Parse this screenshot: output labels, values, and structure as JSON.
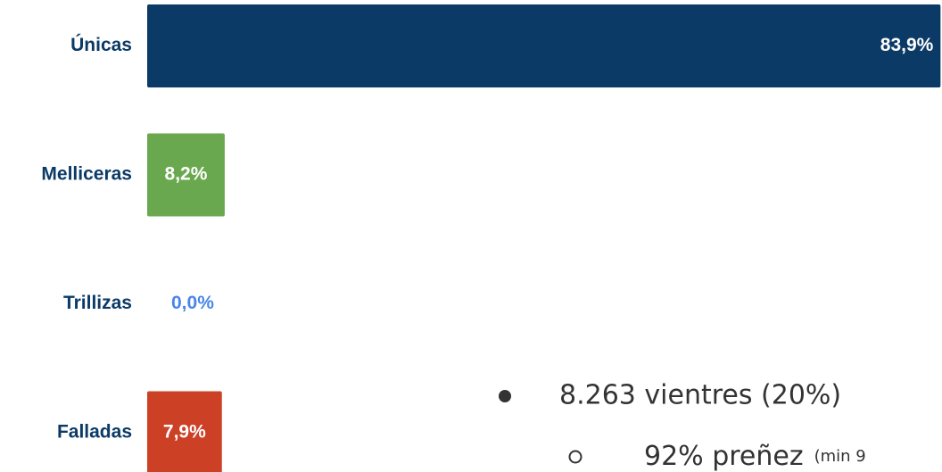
{
  "chart_data": {
    "type": "hbar",
    "categories": [
      "Únicas",
      "Melliceras",
      "Trillizas",
      "Falladas"
    ],
    "values": [
      83.9,
      8.2,
      0.0,
      7.9
    ],
    "value_labels": [
      "83,9%",
      "8,2%",
      "0,0%",
      "7,9%"
    ],
    "colors": [
      "#0b3a66",
      "#6aa84f",
      "#4a86e8",
      "#cc4125"
    ],
    "bullets": [
      {
        "text": "8.263 vientres (20%)",
        "sub": [
          {
            "text": "92% preñez",
            "note": "(min 9"
          }
        ]
      }
    ]
  }
}
